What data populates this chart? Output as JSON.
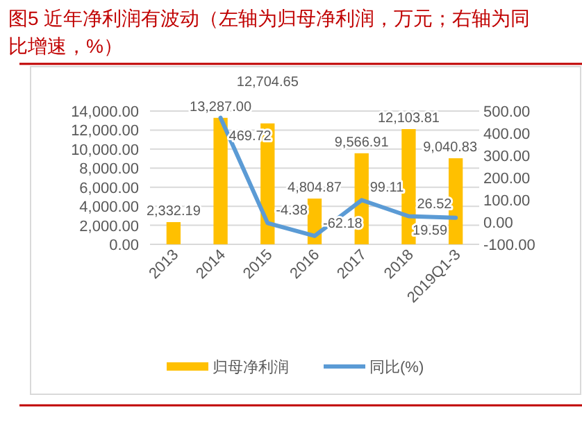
{
  "chart_data": {
    "type": "bar",
    "title": "图5  近年净利润有波动（左轴为归母净利润，万元；右轴为同比增速，%）",
    "categories": [
      "2013",
      "2014",
      "2015",
      "2016",
      "2017",
      "2018",
      "2019Q1-3"
    ],
    "series": [
      {
        "name": "归母净利润",
        "color": "#ffc000",
        "values": [
          2332.19,
          13287.0,
          12704.65,
          4804.87,
          9566.91,
          12103.81,
          9040.83
        ],
        "value_labels": [
          "2,332.19",
          "13,287.00",
          "12,704.65",
          "4,804.87",
          "9,566.91",
          "12,103.81",
          "9,040.83"
        ]
      },
      {
        "name": "同比(%)",
        "type": "line",
        "axis": "y2",
        "color": "#5b9bd5",
        "values": [
          null,
          469.72,
          -4.38,
          -62.18,
          99.11,
          26.52,
          19.59
        ],
        "value_labels": [
          null,
          "469.72",
          "-4.38",
          "-62.18",
          "99.11",
          "26.52",
          "19.59"
        ]
      }
    ],
    "ylim": [
      0,
      14000
    ],
    "yticks": [
      {
        "value": 0,
        "label": "0.00"
      },
      {
        "value": 2000,
        "label": "2,000.00"
      },
      {
        "value": 4000,
        "label": "4,000.00"
      },
      {
        "value": 6000,
        "label": "6,000.00"
      },
      {
        "value": 8000,
        "label": "8,000.00"
      },
      {
        "value": 10000,
        "label": "10,000.00"
      },
      {
        "value": 12000,
        "label": "12,000.00"
      },
      {
        "value": 14000,
        "label": "14,000.00"
      }
    ],
    "y2lim": [
      -100,
      500
    ],
    "y2ticks": [
      {
        "value": -100,
        "label": "-100.00"
      },
      {
        "value": 0,
        "label": "0.00"
      },
      {
        "value": 100,
        "label": "100.00"
      },
      {
        "value": 200,
        "label": "200.00"
      },
      {
        "value": 300,
        "label": "300.00"
      },
      {
        "value": 400,
        "label": "400.00"
      },
      {
        "value": 500,
        "label": "500.00"
      }
    ],
    "grid": "y",
    "legend": "bottom",
    "marker": "none",
    "line_style": "solid"
  }
}
